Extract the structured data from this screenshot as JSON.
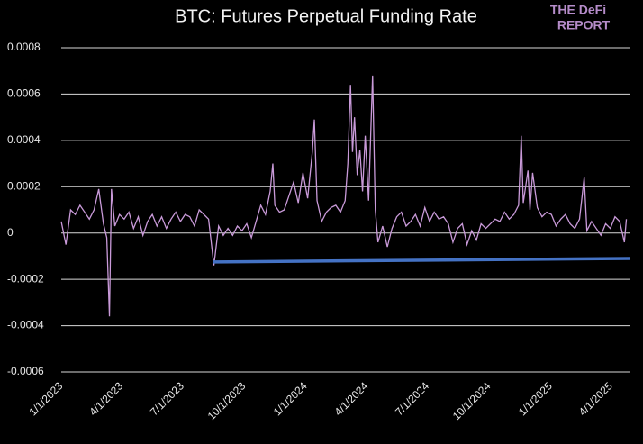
{
  "chart_data": {
    "type": "line",
    "title": "BTC: Futures Perpetual Funding Rate",
    "logo": [
      "THE DeFi",
      "REPORT"
    ],
    "x": [
      "1/1/2023",
      "1/8/2023",
      "1/15/2023",
      "1/22/2023",
      "1/29/2023",
      "2/5/2023",
      "2/12/2023",
      "2/19/2023",
      "2/26/2023",
      "3/5/2023",
      "3/10/2023",
      "3/14/2023",
      "3/17/2023",
      "3/22/2023",
      "3/29/2023",
      "4/5/2023",
      "4/12/2023",
      "4/19/2023",
      "4/26/2023",
      "5/3/2023",
      "5/10/2023",
      "5/17/2023",
      "5/24/2023",
      "5/31/2023",
      "6/7/2023",
      "6/14/2023",
      "6/21/2023",
      "6/28/2023",
      "7/5/2023",
      "7/12/2023",
      "7/19/2023",
      "7/26/2023",
      "8/2/2023",
      "8/9/2023",
      "8/17/2023",
      "8/24/2023",
      "8/31/2023",
      "9/7/2023",
      "9/14/2023",
      "9/21/2023",
      "9/28/2023",
      "10/5/2023",
      "10/12/2023",
      "10/19/2023",
      "10/26/2023",
      "11/2/2023",
      "11/9/2023",
      "11/13/2023",
      "11/16/2023",
      "11/23/2023",
      "11/30/2023",
      "12/7/2023",
      "12/14/2023",
      "12/21/2023",
      "12/28/2023",
      "1/4/2024",
      "1/11/2024",
      "1/14/2024",
      "1/18/2024",
      "1/25/2024",
      "2/1/2024",
      "2/8/2024",
      "2/15/2024",
      "2/22/2024",
      "2/29/2024",
      "3/4/2024",
      "3/8/2024",
      "3/11/2024",
      "3/14/2024",
      "3/18/2024",
      "3/22/2024",
      "3/26/2024",
      "3/30/2024",
      "4/4/2024",
      "4/10/2024",
      "4/14/2024",
      "4/18/2024",
      "4/25/2024",
      "5/2/2024",
      "5/9/2024",
      "5/16/2024",
      "5/23/2024",
      "5/30/2024",
      "6/6/2024",
      "6/13/2024",
      "6/20/2024",
      "6/27/2024",
      "7/4/2024",
      "7/11/2024",
      "7/18/2024",
      "7/25/2024",
      "8/1/2024",
      "8/8/2024",
      "8/15/2024",
      "8/22/2024",
      "8/29/2024",
      "9/5/2024",
      "9/12/2024",
      "9/19/2024",
      "9/26/2024",
      "10/3/2024",
      "10/10/2024",
      "10/17/2024",
      "10/24/2024",
      "10/31/2024",
      "11/7/2024",
      "11/14/2024",
      "11/18/2024",
      "11/21/2024",
      "11/28/2024",
      "12/1/2024",
      "12/5/2024",
      "12/12/2024",
      "12/19/2024",
      "12/26/2024",
      "1/2/2025",
      "1/9/2025",
      "1/16/2025",
      "1/23/2025",
      "1/30/2025",
      "2/6/2025",
      "2/13/2025",
      "2/20/2025",
      "2/24/2025",
      "3/3/2025",
      "3/10/2025",
      "3/17/2025",
      "3/24/2025",
      "3/31/2025",
      "4/7/2025",
      "4/14/2025",
      "4/21/2025",
      "4/24/2025"
    ],
    "series": [
      {
        "color": "#c99ad9",
        "values": [
          5e-05,
          -5e-05,
          0.0001,
          8e-05,
          0.00012,
          9e-05,
          6e-05,
          0.0001,
          0.00019,
          4e-05,
          -2e-05,
          -0.00036,
          0.00019,
          3e-05,
          8e-05,
          6e-05,
          9e-05,
          2e-05,
          7e-05,
          -1e-05,
          5e-05,
          8e-05,
          3e-05,
          7e-05,
          2e-05,
          6e-05,
          9e-05,
          5e-05,
          8e-05,
          7e-05,
          3e-05,
          0.0001,
          8e-05,
          6e-05,
          -0.00014,
          3e-05,
          -1e-05,
          2e-05,
          -1e-05,
          3e-05,
          1e-05,
          4e-05,
          -2e-05,
          5e-05,
          0.00012,
          8e-05,
          0.00018,
          0.0003,
          0.00012,
          9e-05,
          0.0001,
          0.00016,
          0.00022,
          0.00013,
          0.00026,
          0.00015,
          0.00035,
          0.00049,
          0.00014,
          5e-05,
          9e-05,
          0.00011,
          0.00012,
          9e-05,
          0.00014,
          0.0003,
          0.00064,
          0.00035,
          0.0005,
          0.00025,
          0.00036,
          0.00018,
          0.00042,
          0.00014,
          0.00068,
          0.0001,
          -4e-05,
          3e-05,
          -6e-05,
          2e-05,
          7e-05,
          9e-05,
          3e-05,
          5e-05,
          8e-05,
          3e-05,
          0.00011,
          5e-05,
          9e-05,
          6e-05,
          7e-05,
          4e-05,
          -4e-05,
          2e-05,
          4e-05,
          -5e-05,
          1e-05,
          -3e-05,
          4e-05,
          2e-05,
          4e-05,
          6e-05,
          5e-05,
          9e-05,
          6e-05,
          8e-05,
          0.00012,
          0.00042,
          0.00013,
          0.00027,
          0.0001,
          0.00026,
          0.00011,
          7e-05,
          9e-05,
          8e-05,
          3e-05,
          6e-05,
          8e-05,
          4e-05,
          2e-05,
          6e-05,
          0.00024,
          1e-05,
          5e-05,
          2e-05,
          -1e-05,
          4e-05,
          2e-05,
          7e-05,
          5e-05,
          -4e-05,
          6e-05
        ]
      }
    ],
    "reference_line": {
      "color": "#4472c4",
      "x": [
        "8/16/2023",
        "4/30/2025"
      ],
      "y": [
        -0.000125,
        -0.00011
      ]
    },
    "xlim": [
      "1/1/2023",
      "4/30/2025"
    ],
    "xticks": [
      "1/1/2023",
      "4/1/2023",
      "7/1/2023",
      "10/1/2023",
      "1/1/2024",
      "4/1/2024",
      "7/1/2024",
      "10/1/2024",
      "1/1/2025",
      "4/1/2025"
    ],
    "ylim": [
      -0.0006,
      0.0008
    ],
    "yticks": [
      -0.0006,
      -0.0004,
      -0.0002,
      0,
      0.0002,
      0.0004,
      0.0006,
      0.0008
    ],
    "grid": true
  }
}
